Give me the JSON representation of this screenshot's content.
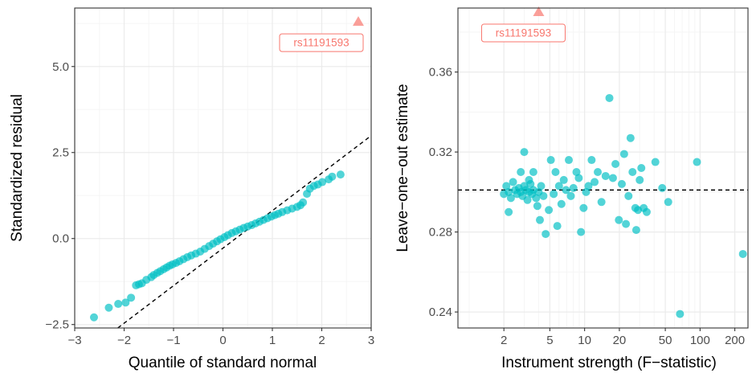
{
  "colors": {
    "points": "#00BFC4",
    "outlier": "#F8766D",
    "grid_major": "#ebebeb",
    "grid_minor": "#f5f5f5",
    "panel_border": "#333333",
    "reference_line": "#000000"
  },
  "chart_data": [
    {
      "type": "scatter",
      "xlabel": "Quantile of standard normal",
      "ylabel": "Standardized residual",
      "xlim": [
        -3,
        3
      ],
      "ylim": [
        -2.6,
        6.7
      ],
      "xticks": [
        -3,
        -2,
        -1,
        0,
        1,
        2,
        3
      ],
      "xtick_labels": [
        "−3",
        "−2",
        "−1",
        "0",
        "1",
        "2",
        "3"
      ],
      "yticks": [
        -2.5,
        0,
        2.5,
        5
      ],
      "ytick_labels": [
        "−2.5",
        "0.0",
        "2.5",
        "5.0"
      ],
      "grid": true,
      "reference_line": {
        "style": "dashed",
        "intercept": -0.28,
        "slope": 1.09
      },
      "series": [
        {
          "points": [
            [
              -2.61,
              -2.29
            ],
            [
              -2.31,
              -2.01
            ],
            [
              -2.12,
              -1.9
            ],
            [
              -1.97,
              -1.86
            ],
            [
              -1.86,
              -1.72
            ],
            [
              -1.76,
              -1.36
            ],
            [
              -1.7,
              -1.33
            ],
            [
              -1.64,
              -1.3
            ],
            [
              -1.55,
              -1.2
            ],
            [
              -1.45,
              -1.12
            ],
            [
              -1.4,
              -1.06
            ],
            [
              -1.33,
              -1.0
            ],
            [
              -1.27,
              -0.95
            ],
            [
              -1.2,
              -0.89
            ],
            [
              -1.14,
              -0.84
            ],
            [
              -1.08,
              -0.79
            ],
            [
              -1.02,
              -0.75
            ],
            [
              -0.95,
              -0.71
            ],
            [
              -0.88,
              -0.66
            ],
            [
              -0.8,
              -0.6
            ],
            [
              -0.72,
              -0.54
            ],
            [
              -0.64,
              -0.49
            ],
            [
              -0.55,
              -0.44
            ],
            [
              -0.46,
              -0.38
            ],
            [
              -0.37,
              -0.3
            ],
            [
              -0.28,
              -0.22
            ],
            [
              -0.2,
              -0.15
            ],
            [
              -0.12,
              -0.08
            ],
            [
              -0.05,
              -0.02
            ],
            [
              0.03,
              0.04
            ],
            [
              0.1,
              0.1
            ],
            [
              0.18,
              0.16
            ],
            [
              0.26,
              0.21
            ],
            [
              0.34,
              0.26
            ],
            [
              0.42,
              0.31
            ],
            [
              0.5,
              0.35
            ],
            [
              0.58,
              0.39
            ],
            [
              0.66,
              0.44
            ],
            [
              0.74,
              0.49
            ],
            [
              0.82,
              0.54
            ],
            [
              0.9,
              0.59
            ],
            [
              0.98,
              0.64
            ],
            [
              1.05,
              0.68
            ],
            [
              1.12,
              0.72
            ],
            [
              1.2,
              0.77
            ],
            [
              1.3,
              0.82
            ],
            [
              1.4,
              0.87
            ],
            [
              1.5,
              0.92
            ],
            [
              1.57,
              0.97
            ],
            [
              1.62,
              1.05
            ],
            [
              1.7,
              1.3
            ],
            [
              1.76,
              1.45
            ],
            [
              1.84,
              1.53
            ],
            [
              1.92,
              1.57
            ],
            [
              2.01,
              1.64
            ],
            [
              2.14,
              1.72
            ],
            [
              2.21,
              1.8
            ],
            [
              2.38,
              1.86
            ]
          ]
        }
      ],
      "outlier": {
        "x": 2.74,
        "y": 6.3,
        "label": "rs11191593"
      }
    },
    {
      "type": "scatter",
      "xlabel": "Instrument strength (F−statistic)",
      "ylabel": "Leave−one−out estimate",
      "xscale": "log",
      "xlim": [
        0.8,
        260
      ],
      "ylim": [
        0.232,
        0.392
      ],
      "xticks": [
        2,
        5,
        10,
        20,
        50,
        100,
        200
      ],
      "xtick_labels": [
        "2",
        "5",
        "10",
        "20",
        "50",
        "100",
        "200"
      ],
      "yticks": [
        0.24,
        0.28,
        0.32,
        0.36
      ],
      "ytick_labels": [
        "0.24",
        "0.28",
        "0.32",
        "0.36"
      ],
      "grid": true,
      "reference_line": {
        "style": "dashed",
        "y": 0.301
      },
      "series": [
        {
          "points": [
            [
              2.0,
              0.299
            ],
            [
              2.1,
              0.303
            ],
            [
              2.2,
              0.3
            ],
            [
              2.3,
              0.297
            ],
            [
              2.4,
              0.305
            ],
            [
              2.5,
              0.301
            ],
            [
              2.6,
              0.299
            ],
            [
              2.7,
              0.302
            ],
            [
              2.8,
              0.3
            ],
            [
              2.9,
              0.298
            ],
            [
              3.0,
              0.303
            ],
            [
              3.1,
              0.301
            ],
            [
              3.2,
              0.296
            ],
            [
              3.3,
              0.3
            ],
            [
              3.4,
              0.304
            ],
            [
              3.5,
              0.299
            ],
            [
              3.6,
              0.301
            ],
            [
              3.8,
              0.297
            ],
            [
              2.2,
              0.29
            ],
            [
              2.8,
              0.31
            ],
            [
              3.0,
              0.32
            ],
            [
              3.3,
              0.306
            ],
            [
              3.6,
              0.31
            ],
            [
              3.9,
              0.293
            ],
            [
              4.1,
              0.286
            ],
            [
              4.0,
              0.3
            ],
            [
              4.2,
              0.303
            ],
            [
              4.4,
              0.298
            ],
            [
              4.6,
              0.279
            ],
            [
              4.9,
              0.291
            ],
            [
              5.1,
              0.316
            ],
            [
              5.4,
              0.299
            ],
            [
              5.6,
              0.31
            ],
            [
              5.8,
              0.283
            ],
            [
              6.0,
              0.303
            ],
            [
              6.3,
              0.294
            ],
            [
              6.6,
              0.306
            ],
            [
              6.9,
              0.301
            ],
            [
              7.3,
              0.316
            ],
            [
              7.6,
              0.298
            ],
            [
              8.0,
              0.302
            ],
            [
              8.5,
              0.31
            ],
            [
              8.9,
              0.307
            ],
            [
              9.3,
              0.28
            ],
            [
              9.8,
              0.292
            ],
            [
              10.3,
              0.3
            ],
            [
              10.8,
              0.303
            ],
            [
              11.5,
              0.316
            ],
            [
              12.2,
              0.305
            ],
            [
              13.0,
              0.31
            ],
            [
              14.0,
              0.295
            ],
            [
              15.2,
              0.308
            ],
            [
              16.4,
              0.347
            ],
            [
              17.6,
              0.307
            ],
            [
              18.5,
              0.314
            ],
            [
              19.8,
              0.286
            ],
            [
              21.0,
              0.304
            ],
            [
              22.0,
              0.319
            ],
            [
              22.8,
              0.284
            ],
            [
              24.0,
              0.298
            ],
            [
              25.0,
              0.327
            ],
            [
              26.0,
              0.31
            ],
            [
              27.5,
              0.292
            ],
            [
              28.0,
              0.281
            ],
            [
              29.0,
              0.291
            ],
            [
              30.0,
              0.306
            ],
            [
              31.0,
              0.312
            ],
            [
              32.5,
              0.292
            ],
            [
              34.5,
              0.29
            ],
            [
              41.0,
              0.315
            ],
            [
              47.0,
              0.302
            ],
            [
              53.0,
              0.295
            ],
            [
              67.0,
              0.239
            ],
            [
              94.0,
              0.315
            ],
            [
              235.0,
              0.269
            ]
          ]
        }
      ],
      "outlier": {
        "x": 4.0,
        "y": 0.39,
        "label": "rs11191593"
      }
    }
  ]
}
